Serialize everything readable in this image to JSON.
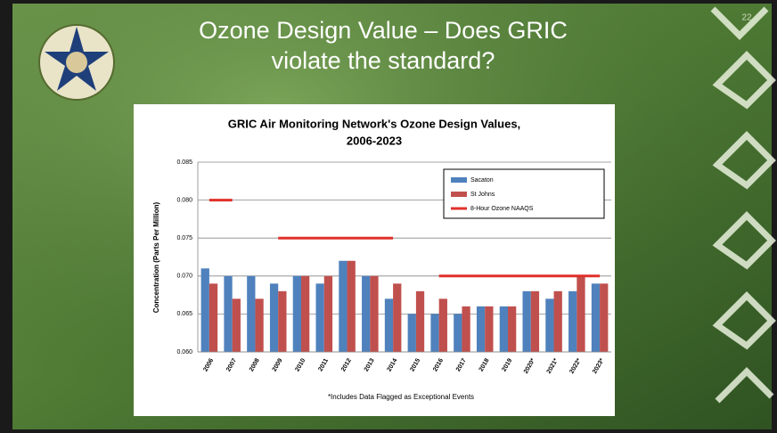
{
  "slide": {
    "title_line1": "Ozone  Design  Value – Does GRIC",
    "title_line2": "violate the standard?",
    "number": "22"
  },
  "chart_data": {
    "type": "bar",
    "title": "GRIC Air Monitoring Network's Ozone Design Values,",
    "title_line2": "2006-2023",
    "y_label": "Concentration (Parts Per Million)",
    "note": "*Includes Data Flagged as Exceptional Events",
    "categories": [
      "2006",
      "2007",
      "2008",
      "2009",
      "2010",
      "2011",
      "2012",
      "2013",
      "2014",
      "2015",
      "2016",
      "2017",
      "2018",
      "2019",
      "2020*",
      "2021*",
      "2022*",
      "2023*"
    ],
    "series": [
      {
        "name": "Sacaton",
        "color": "#4f81bd",
        "type": "bar",
        "values": [
          0.071,
          0.07,
          0.07,
          0.069,
          0.07,
          0.069,
          0.072,
          0.07,
          0.067,
          0.065,
          0.065,
          0.065,
          0.066,
          0.066,
          0.068,
          0.067,
          0.068,
          0.069
        ]
      },
      {
        "name": "St Johns",
        "color": "#c0504d",
        "type": "bar",
        "values": [
          0.069,
          0.067,
          0.067,
          0.068,
          0.07,
          0.07,
          0.072,
          0.07,
          0.069,
          0.068,
          0.067,
          0.066,
          0.066,
          0.066,
          0.068,
          0.068,
          0.07,
          0.069
        ]
      },
      {
        "name": "8-Hour Ozone NAAQS",
        "color": "#e0302a",
        "type": "line",
        "values": [
          0.08,
          0.08,
          null,
          0.075,
          0.075,
          0.075,
          0.075,
          0.075,
          0.075,
          null,
          0.07,
          0.07,
          0.07,
          0.07,
          0.07,
          0.07,
          0.07,
          0.07
        ]
      }
    ],
    "ylim": [
      0.06,
      0.085
    ],
    "yticks": [
      {
        "value": 0.06,
        "label": "0.060"
      },
      0.065,
      {
        "value": 0.07,
        "label": "0.070"
      },
      0.075,
      {
        "value": 0.08,
        "label": "0.080"
      },
      0.085
    ],
    "grid": true,
    "legend": "upper right"
  }
}
